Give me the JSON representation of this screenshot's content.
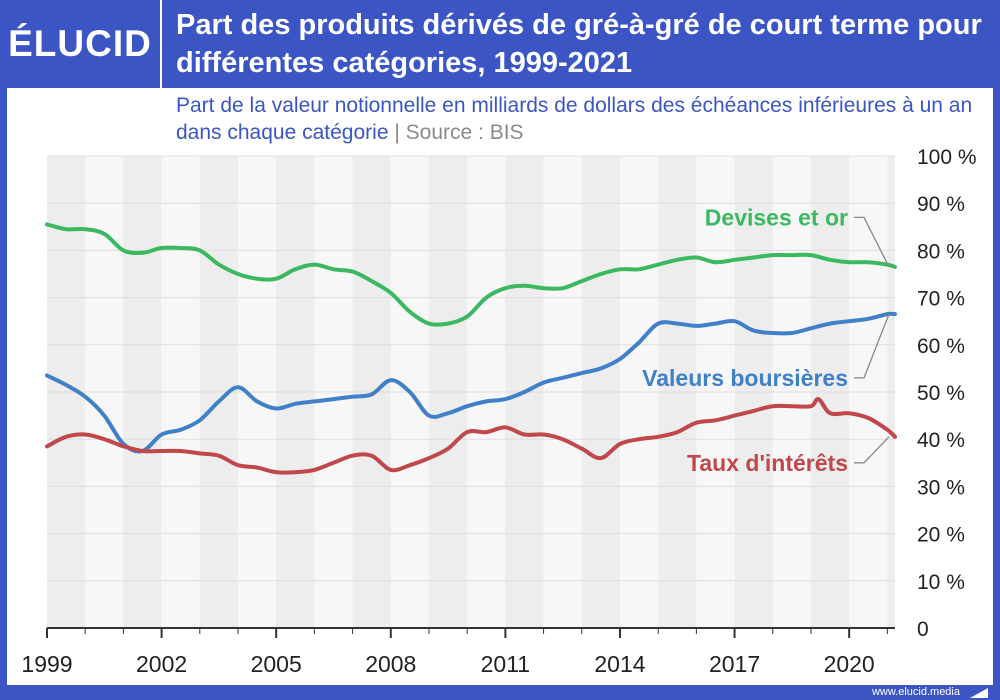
{
  "brand": {
    "logo_text": "ÉLUCID",
    "footer_url": "www.elucid.media"
  },
  "colors": {
    "brand_blue": "#3b55c5",
    "devises": "#3cb860",
    "valeurs": "#3f80c8",
    "taux": "#c0474a"
  },
  "chart_data": {
    "type": "line",
    "title": "Part des produits dérivés de gré-à-gré de court terme pour différentes catégories, 1999-2021",
    "subtitle": "Part de la valeur notionnelle en milliards de dollars des échéances inférieures à un an dans chaque catégorie",
    "source": "Source : BIS",
    "xlim": [
      1999,
      2021.2
    ],
    "ylim": [
      0,
      100
    ],
    "x_ticks": [
      {
        "value": 1999,
        "label": "1999"
      },
      {
        "value": 2002,
        "label": "2002"
      },
      {
        "value": 2005,
        "label": "2005"
      },
      {
        "value": 2008,
        "label": "2008"
      },
      {
        "value": 2011,
        "label": "2011"
      },
      {
        "value": 2014,
        "label": "2014"
      },
      {
        "value": 2017,
        "label": "2017"
      },
      {
        "value": 2020,
        "label": "2020"
      }
    ],
    "y_ticks": [
      {
        "value": 0,
        "label": "0"
      },
      {
        "value": 10,
        "label": "10 %"
      },
      {
        "value": 20,
        "label": "20 %"
      },
      {
        "value": 30,
        "label": "30 %"
      },
      {
        "value": 40,
        "label": "40 %"
      },
      {
        "value": 50,
        "label": "50 %"
      },
      {
        "value": 60,
        "label": "60 %"
      },
      {
        "value": 70,
        "label": "70 %"
      },
      {
        "value": 80,
        "label": "80 %"
      },
      {
        "value": 90,
        "label": "90 %"
      },
      {
        "value": 100,
        "label": "100 %"
      }
    ],
    "grid": true,
    "legend": "inline labels on the right",
    "series": [
      {
        "name": "Devises et or",
        "color": "#3cb860",
        "label_value": 87,
        "x": [
          1999,
          1999.5,
          2000,
          2000.5,
          2001,
          2001.5,
          2002,
          2002.5,
          2003,
          2003.5,
          2004,
          2004.5,
          2005,
          2005.5,
          2006,
          2006.5,
          2007,
          2007.5,
          2008,
          2008.5,
          2009,
          2009.5,
          2010,
          2010.5,
          2011,
          2011.5,
          2012,
          2012.5,
          2013,
          2013.5,
          2014,
          2014.5,
          2015,
          2015.5,
          2016,
          2016.5,
          2017,
          2017.5,
          2018,
          2018.5,
          2019,
          2019.5,
          2020,
          2020.5,
          2021,
          2021.2
        ],
        "values": [
          85.5,
          84.5,
          84.5,
          83.5,
          80,
          79.5,
          80.5,
          80.5,
          80,
          77,
          75,
          74,
          74,
          76,
          77,
          76,
          75.5,
          73.5,
          71,
          67,
          64.5,
          64.5,
          66,
          70,
          72,
          72.5,
          72,
          72,
          73.5,
          75,
          76,
          76,
          77,
          78,
          78.5,
          77.5,
          78,
          78.5,
          79,
          79,
          79,
          78,
          77.5,
          77.5,
          77,
          76.5
        ]
      },
      {
        "name": "Valeurs boursières",
        "color": "#3f80c8",
        "label_value": 53,
        "x": [
          1999,
          1999.5,
          2000,
          2000.5,
          2001,
          2001.5,
          2002,
          2002.5,
          2003,
          2003.5,
          2004,
          2004.5,
          2005,
          2005.5,
          2006,
          2006.5,
          2007,
          2007.5,
          2008,
          2008.5,
          2009,
          2009.5,
          2010,
          2010.5,
          2011,
          2011.5,
          2012,
          2012.5,
          2013,
          2013.5,
          2014,
          2014.5,
          2015,
          2015.5,
          2016,
          2016.5,
          2017,
          2017.5,
          2018,
          2018.5,
          2019,
          2019.5,
          2020,
          2020.5,
          2021,
          2021.2
        ],
        "values": [
          53.5,
          51.5,
          49,
          45,
          39,
          37.5,
          41,
          42,
          44,
          48,
          51,
          48,
          46.5,
          47.5,
          48,
          48.5,
          49,
          49.5,
          52.5,
          50,
          45,
          45.5,
          47,
          48,
          48.5,
          50,
          52,
          53,
          54,
          55,
          57,
          60.5,
          64.5,
          64.5,
          64,
          64.5,
          65,
          63,
          62.5,
          62.5,
          63.5,
          64.5,
          65,
          65.5,
          66.5,
          66.5
        ]
      },
      {
        "name": "Taux d'intérêts",
        "color": "#c0474a",
        "label_value": 35,
        "x": [
          1999,
          1999.5,
          2000,
          2000.5,
          2001,
          2001.5,
          2002,
          2002.5,
          2003,
          2003.5,
          2004,
          2004.5,
          2005,
          2005.5,
          2006,
          2006.5,
          2007,
          2007.5,
          2008,
          2008.5,
          2009,
          2009.5,
          2010,
          2010.5,
          2011,
          2011.5,
          2012,
          2012.5,
          2013,
          2013.5,
          2014,
          2014.5,
          2015,
          2015.5,
          2016,
          2016.5,
          2017,
          2017.5,
          2018,
          2018.5,
          2019,
          2019.2,
          2019.5,
          2020,
          2020.5,
          2021,
          2021.2
        ],
        "values": [
          38.5,
          40.5,
          41,
          40,
          38.5,
          37.5,
          37.5,
          37.5,
          37,
          36.5,
          34.5,
          34,
          33,
          33,
          33.5,
          35,
          36.5,
          36.5,
          33.5,
          34.5,
          36,
          38,
          41.5,
          41.5,
          42.5,
          41,
          41,
          40,
          38,
          36,
          39,
          40,
          40.5,
          41.5,
          43.5,
          44,
          45,
          46,
          47,
          47,
          47,
          48.5,
          45.5,
          45.5,
          44.5,
          42,
          40.5
        ]
      }
    ]
  }
}
